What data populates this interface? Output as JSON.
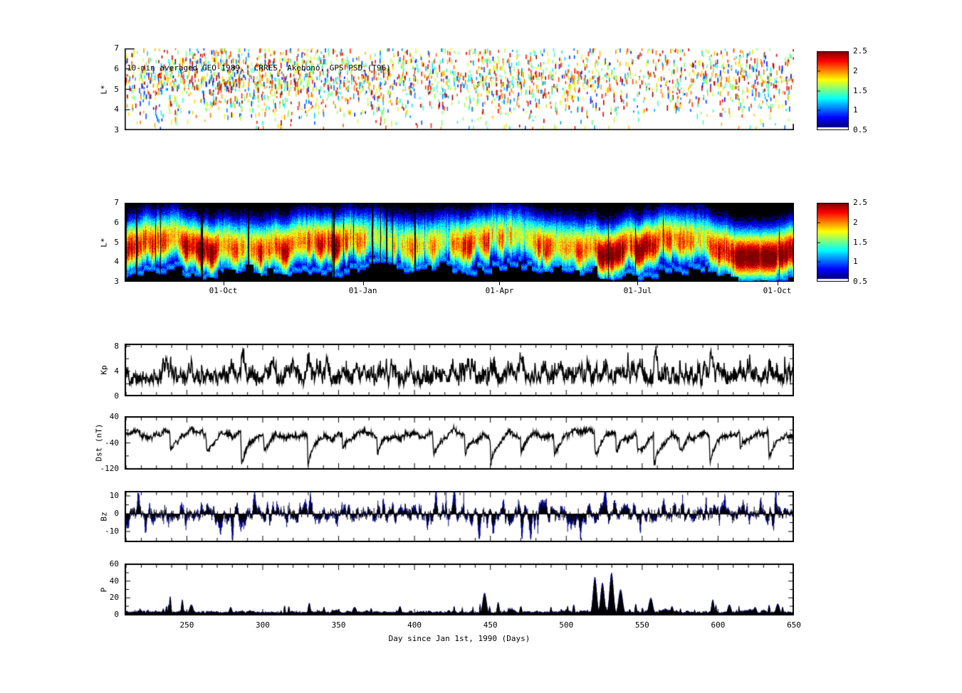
{
  "figure": {
    "background": "#ffffff",
    "font_color": "#000000",
    "xlabel": "Day since Jan 1st, 1990 (Days)",
    "x_domain_days": [
      209,
      650
    ],
    "x_tick_labels": [
      "250",
      "300",
      "350",
      "400",
      "450",
      "500",
      "550",
      "600",
      "650"
    ],
    "x_tick_days": [
      250,
      300,
      350,
      400,
      450,
      500,
      550,
      600,
      650
    ]
  },
  "colorbar": {
    "colormap": "jet",
    "range": [
      0.5,
      2.5
    ],
    "tick_labels": [
      "2.5",
      "2",
      "1.5",
      "1",
      "0.5"
    ],
    "tick_values": [
      2.5,
      2,
      1.5,
      1,
      0.5
    ],
    "below_min_color": "#ffffff"
  },
  "panels": {
    "psd_observed": {
      "title": "10-min averaged GEO-1989,  CRRES, Akebono, GPS PSD (T96)",
      "ylabel": "L*",
      "ylim": [
        3,
        7
      ],
      "y_tick_labels": [
        "7",
        "6",
        "5",
        "4",
        "3"
      ],
      "y_tick_values": [
        7,
        6,
        5,
        4,
        3
      ]
    },
    "psd_model": {
      "ylabel": "L*",
      "ylim": [
        3,
        7
      ],
      "y_tick_labels": [
        "7",
        "6",
        "5",
        "4",
        "3"
      ],
      "y_tick_values": [
        7,
        6,
        5,
        4,
        3
      ],
      "x_tick_labels": [
        "01-Oct",
        "01-Jan",
        "01-Apr",
        "01-Jul",
        "01-Oct"
      ],
      "x_tick_days": [
        274,
        366,
        456,
        547,
        639
      ]
    },
    "kp": {
      "ylabel": "Kp",
      "ylim": [
        0,
        8.4
      ],
      "y_tick_labels": [
        "8",
        "4",
        "0"
      ],
      "y_tick_values": [
        8,
        4,
        0
      ],
      "y_minor_ticks": [
        2,
        6
      ]
    },
    "dst": {
      "ylabel": "Dst (nT)",
      "ylim": [
        -122,
        42
      ],
      "y_tick_labels": [
        "40",
        "-40",
        "-120"
      ],
      "y_tick_values": [
        40,
        -40,
        -120
      ],
      "y_minor_ticks": [
        0,
        -80
      ]
    },
    "bz": {
      "ylabel": "Bz",
      "ylim": [
        -16,
        12.8
      ],
      "y_tick_labels": [
        "10",
        "0",
        "-10"
      ],
      "y_tick_values": [
        10,
        0,
        -10
      ],
      "y_minor_ticks": [
        5,
        -5
      ]
    },
    "p": {
      "ylabel": "P",
      "ylim": [
        -1,
        61
      ],
      "y_tick_labels": [
        "60",
        "40",
        "20",
        "0"
      ],
      "y_tick_values": [
        60,
        40,
        20,
        0
      ],
      "y_minor_ticks": [
        10,
        30,
        50
      ]
    }
  },
  "chart_data": [
    {
      "id": "psd_observed",
      "type": "scatter",
      "title": "10-min averaged GEO-1989,  CRRES, Akebono, GPS PSD (T96)",
      "ylabel": "L*",
      "ylim": [
        3,
        7
      ],
      "xlim_days": [
        209,
        650
      ],
      "colormap": "jet",
      "color_value_range": [
        0.5,
        2.5
      ],
      "n_points": 2600,
      "seed": 7,
      "L_bands": [
        {
          "center": 4.9,
          "sigma": 0.85,
          "frac": 0.55
        },
        {
          "center": 5.55,
          "sigma": 0.35,
          "frac": 0.27
        },
        {
          "min": 6.1,
          "max": 7.0,
          "frac": 0.18
        }
      ],
      "value_mix": [
        {
          "min": 1.75,
          "max": 2.5,
          "frac": 0.45
        },
        {
          "min": 0.75,
          "max": 1.45,
          "frac": 0.3
        },
        {
          "min": 1.45,
          "max": 1.75,
          "frac": 0.25
        }
      ]
    },
    {
      "id": "psd_model",
      "type": "heatmap",
      "ylabel": "L*",
      "ylim": [
        3,
        7
      ],
      "xlim_days": [
        209,
        650
      ],
      "x_tick_labels": [
        "01-Oct",
        "01-Jan",
        "01-Apr",
        "01-Jul",
        "01-Oct"
      ],
      "x_tick_days": [
        274,
        366,
        456,
        547,
        639
      ],
      "colormap": "jet",
      "value_range": [
        0.5,
        2.5
      ],
      "black_below": 0.5,
      "peak_L_range": [
        4.2,
        6.3
      ],
      "bottom_cut_L_range": [
        3.0,
        4.7
      ],
      "seed": 11
    },
    {
      "id": "kp",
      "type": "line",
      "ylabel": "Kp",
      "ylim": [
        0,
        8.4
      ],
      "y_ticks": [
        0,
        4,
        8
      ],
      "color": "#000000",
      "seed": 101,
      "n": 1880,
      "base": 1.6,
      "quantum": 0.3333
    },
    {
      "id": "dst",
      "type": "line",
      "ylabel": "Dst (nT)",
      "ylim": [
        -122,
        42
      ],
      "y_ticks": [
        40,
        -40,
        -120
      ],
      "color": "#000000",
      "seed": 202,
      "n": 1880,
      "baseline": -12,
      "storms": [
        {
          "day": 238,
          "min": -70
        },
        {
          "day": 262,
          "min": -65
        },
        {
          "day": 285,
          "min": -118
        },
        {
          "day": 300,
          "min": -60
        },
        {
          "day": 329,
          "min": -112
        },
        {
          "day": 352,
          "min": -65
        },
        {
          "day": 375,
          "min": -70
        },
        {
          "day": 412,
          "min": -88
        },
        {
          "day": 433,
          "min": -75
        },
        {
          "day": 450,
          "min": -95
        },
        {
          "day": 470,
          "min": -70
        },
        {
          "day": 492,
          "min": -72
        },
        {
          "day": 519,
          "min": -80
        },
        {
          "day": 533,
          "min": -85
        },
        {
          "day": 547,
          "min": -70
        },
        {
          "day": 558,
          "min": -115
        },
        {
          "day": 575,
          "min": -70
        },
        {
          "day": 595,
          "min": -100
        },
        {
          "day": 615,
          "min": -72
        },
        {
          "day": 634,
          "min": -95
        }
      ]
    },
    {
      "id": "bz",
      "type": "line",
      "ylabel": "Bz",
      "ylim": [
        -16,
        12.8
      ],
      "y_ticks": [
        -10,
        0,
        10
      ],
      "series": [
        {
          "name": "outer-envelope",
          "color": "#00008B",
          "amplitude": 5.2
        },
        {
          "name": "inner-core",
          "color": "#000000",
          "amplitude": 2.6
        }
      ],
      "seed": 303,
      "n": 1880
    },
    {
      "id": "p",
      "type": "line",
      "ylabel": "P",
      "ylim": [
        -1,
        61
      ],
      "y_ticks": [
        0,
        20,
        40,
        60
      ],
      "series": [
        {
          "name": "outer-envelope",
          "color": "#00008B"
        },
        {
          "name": "inner-core",
          "color": "#000000"
        }
      ],
      "seed": 404,
      "n": 1880,
      "base": 3.2,
      "spikes": [
        {
          "day": 238,
          "v": 22
        },
        {
          "day": 246,
          "v": 18
        },
        {
          "day": 252,
          "v": 12
        },
        {
          "day": 278,
          "v": 9
        },
        {
          "day": 330,
          "v": 14
        },
        {
          "day": 360,
          "v": 9
        },
        {
          "day": 390,
          "v": 10
        },
        {
          "day": 446,
          "v": 26
        },
        {
          "day": 455,
          "v": 15
        },
        {
          "day": 470,
          "v": 10
        },
        {
          "day": 505,
          "v": 12
        },
        {
          "day": 519,
          "v": 45
        },
        {
          "day": 524,
          "v": 38
        },
        {
          "day": 530,
          "v": 50
        },
        {
          "day": 536,
          "v": 30
        },
        {
          "day": 556,
          "v": 20
        },
        {
          "day": 570,
          "v": 10
        },
        {
          "day": 597,
          "v": 18
        },
        {
          "day": 608,
          "v": 12
        },
        {
          "day": 625,
          "v": 9
        },
        {
          "day": 640,
          "v": 13
        }
      ]
    }
  ]
}
